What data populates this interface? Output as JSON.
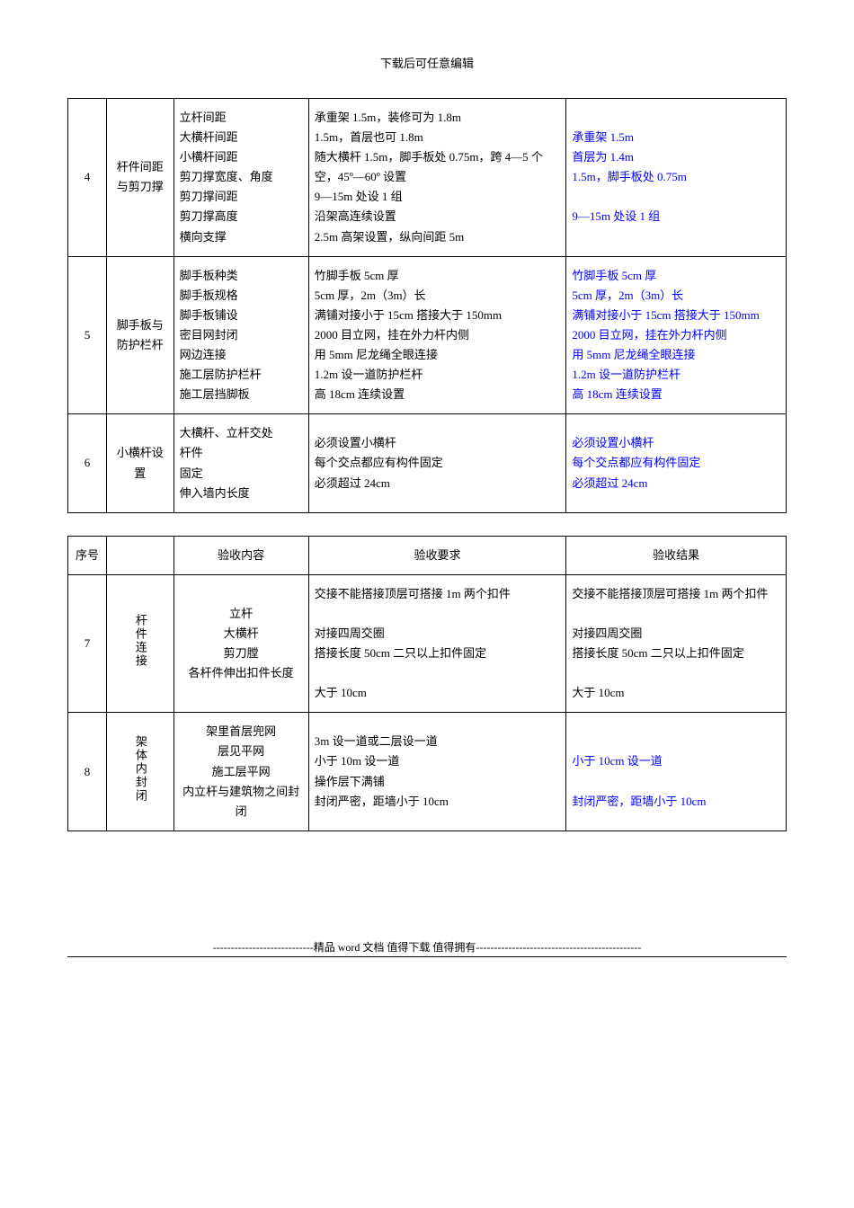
{
  "header": "下载后可任意编辑",
  "table1": {
    "rows": [
      {
        "idx": "4",
        "name": "杆件间距与剪刀撑",
        "content": [
          "立杆间距",
          "大横杆间距",
          "小横杆间距",
          "剪刀撑宽度、角度",
          "剪刀撑间距",
          "剪刀撑高度",
          "横向支撑"
        ],
        "req": [
          "承重架 1.5m，装修可为 1.8m",
          "1.5m，首层也可 1.8m",
          "随大横杆 1.5m，脚手板处 0.75m，跨 4—5 个空，45º—60º 设置",
          "9—15m 处设 1 组",
          "沿架高连续设置",
          "2.5m 高架设置，纵向间距 5m"
        ],
        "result": [
          "承重架 1.5m",
          "首层为 1.4m",
          "1.5m，脚手板处 0.75m",
          "",
          "9—15m 处设 1 组"
        ],
        "result_blue": true
      },
      {
        "idx": "5",
        "name": "脚手板与防护栏杆",
        "content": [
          "脚手板种类",
          "脚手板规格",
          "脚手板铺设",
          "密目网封闭",
          "网边连接",
          "施工层防护栏杆",
          "施工层挡脚板"
        ],
        "req": [
          "竹脚手板 5cm 厚",
          "5cm 厚，2m（3m）长",
          "满铺对接小于 15cm 搭接大于 150mm",
          "2000 目立网，挂在外力杆内侧",
          "用 5mm 尼龙绳全眼连接",
          "1.2m 设一道防护栏杆",
          "高 18cm 连续设置"
        ],
        "result": [
          "竹脚手板 5cm 厚",
          "5cm 厚，2m（3m）长",
          "满铺对接小于 15cm 搭接大于 150mm",
          "2000 目立网，挂在外力杆内侧",
          "用 5mm 尼龙绳全眼连接",
          "1.2m 设一道防护栏杆",
          "高 18cm 连续设置"
        ],
        "result_blue": true
      },
      {
        "idx": "6",
        "name": "小横杆设置",
        "content": [
          "大横杆、立杆交处",
          "杆件",
          "固定",
          "伸入墙内长度"
        ],
        "req": [
          "必须设置小横杆",
          "每个交点都应有构件固定",
          "必须超过 24cm"
        ],
        "result": [
          "必须设置小横杆",
          "每个交点都应有构件固定",
          "必须超过 24cm"
        ],
        "result_blue": true
      }
    ]
  },
  "table2": {
    "headers": [
      "序号",
      "",
      "验收内容",
      "验收要求",
      "验收结果"
    ],
    "rows": [
      {
        "idx": "7",
        "name_vertical": "杆件连接",
        "content": [
          "立杆",
          "大横杆",
          "剪刀膛",
          "各杆件伸出扣件长度"
        ],
        "req": [
          "交接不能搭接顶层可搭接 1m 两个扣件",
          "",
          "对接四周交圈",
          "搭接长度 50cm 二只以上扣件固定",
          "",
          "大于 10cm"
        ],
        "result": [
          "交接不能搭接顶层可搭接 1m 两个扣件",
          "",
          "对接四周交圈",
          "搭接长度 50cm 二只以上扣件固定",
          "",
          "大于 10cm"
        ]
      },
      {
        "idx": "8",
        "name_vertical": "架体内封闭",
        "content": [
          "架里首层兜网",
          "层见平网",
          "施工层平网",
          "内立杆与建筑物之间封闭"
        ],
        "req": [
          "3m 设一道或二层设一道",
          "小于 10m 设一道",
          "操作层下满铺",
          "封闭严密，距墙小于 10cm"
        ],
        "result_lines": [
          {
            "text": "",
            "blue": false
          },
          {
            "text": "小于 10cm 设一道",
            "blue": true
          },
          {
            "text": "",
            "blue": false
          },
          {
            "text": "封闭严密，距墙小于 10cm",
            "blue": true
          }
        ]
      }
    ]
  },
  "footer": "----------------------------精品 word 文档 值得下载 值得拥有----------------------------------------------"
}
